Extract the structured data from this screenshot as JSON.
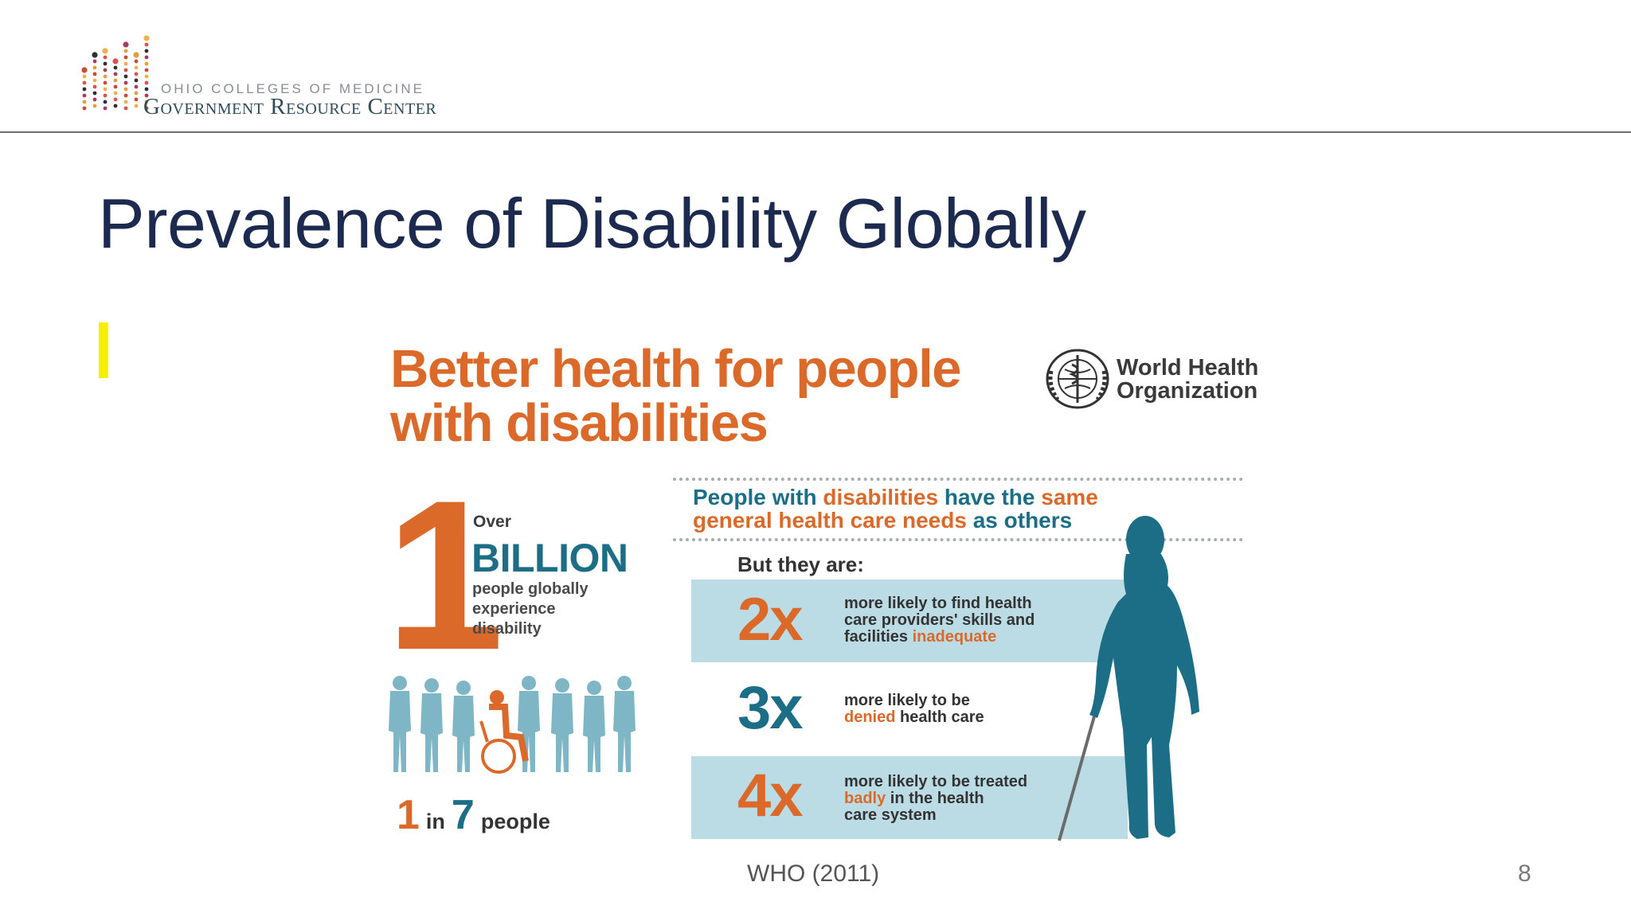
{
  "header": {
    "logo_line1": "OHIO COLLEGES OF MEDICINE",
    "logo_line2": "Government Resource Center"
  },
  "slide": {
    "title": "Prevalence of Disability Globally",
    "source": "WHO (2011)",
    "page_number": "8"
  },
  "infographic": {
    "headline_line1": "Better health for people",
    "headline_line2": "with disabilities",
    "org_line1": "World Health",
    "org_line2": "Organization",
    "needs_line1": {
      "a": "People with ",
      "b": "disabilities",
      "c": " have the ",
      "d": "same"
    },
    "needs_line2": {
      "a": "general health care needs",
      "b": " as others"
    },
    "stat": {
      "big_number": "1",
      "over": "Over",
      "billion": "BILLION",
      "description": "people globally\nexperience\ndisability",
      "ratio_one": "1",
      "ratio_in": "in",
      "ratio_seven": "7",
      "ratio_people": "people"
    },
    "but_they_are": "But they are:",
    "rows": [
      {
        "multiplier": "2x",
        "text_a": "more likely to find health\ncare providers' skills and\nfacilities ",
        "highlight": "inadequate",
        "text_b": ""
      },
      {
        "multiplier": "3x",
        "text_a": "more likely to be\n",
        "highlight": "denied",
        "text_b": " health care"
      },
      {
        "multiplier": "4x",
        "text_a": "more likely to be treated\n",
        "highlight": "badly",
        "text_b": " in the health\ncare system"
      }
    ]
  },
  "colors": {
    "orange": "#db6a2a",
    "teal": "#1c6e87",
    "band": "#bcdce5",
    "title_navy": "#1b2a4e",
    "highlight_yellow": "#f6ef00"
  },
  "icons": [
    "ohio-medicine-dot-logo",
    "who-emblem-icon",
    "people-silhouettes-icon",
    "wheelchair-user-icon",
    "woman-with-cane-icon"
  ]
}
